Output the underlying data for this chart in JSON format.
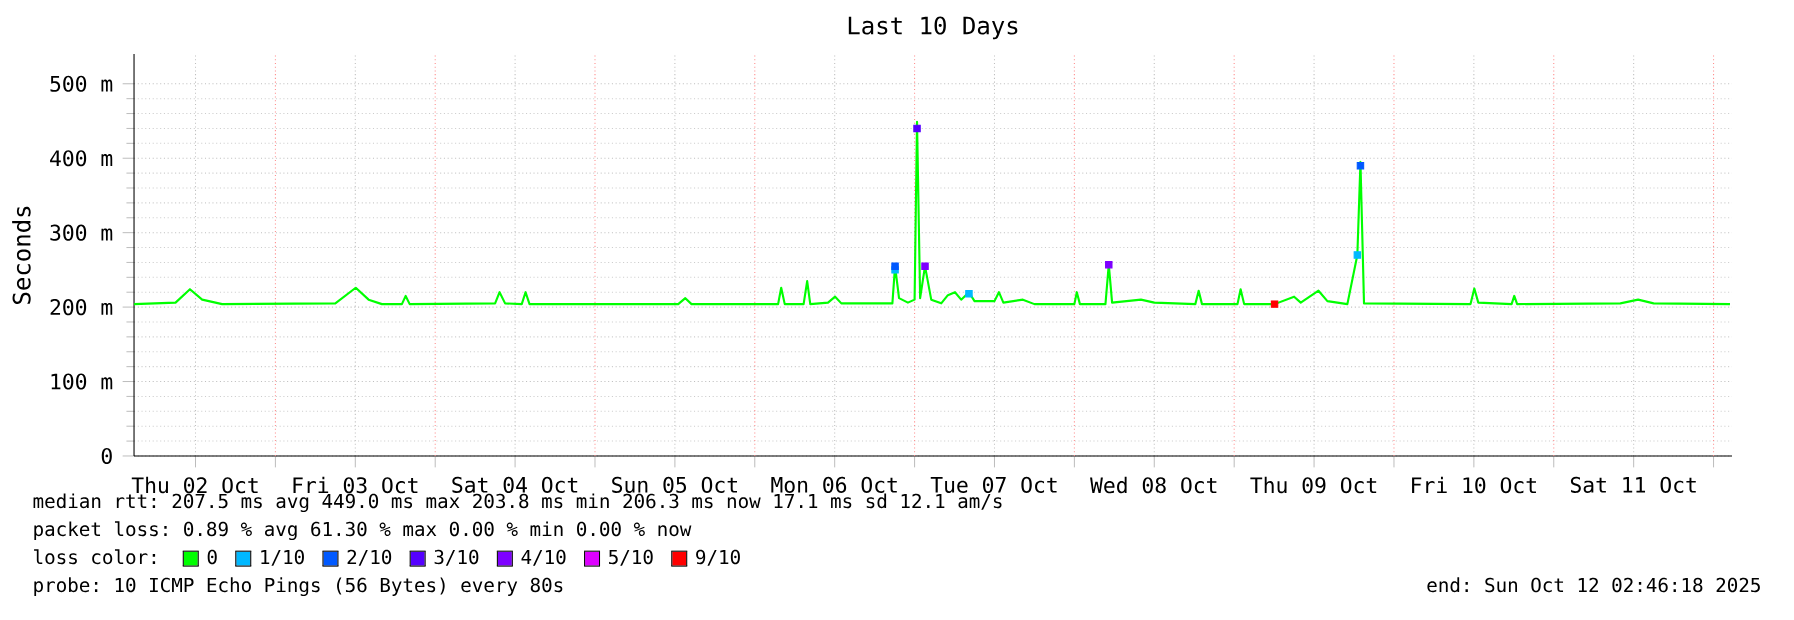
{
  "chart_data": {
    "type": "line",
    "title": "Last 10 Days",
    "ylabel": "Seconds",
    "legend_title": "loss color:",
    "xlim": [
      "2025-10-02T02:46",
      "2025-10-12T02:46"
    ],
    "xticks": [
      {
        "value": "2025-10-02T12:00",
        "label": "Thu 02 Oct"
      },
      {
        "value": "2025-10-03T12:00",
        "label": "Fri 03 Oct"
      },
      {
        "value": "2025-10-04T12:00",
        "label": "Sat 04 Oct"
      },
      {
        "value": "2025-10-05T12:00",
        "label": "Sun 05 Oct"
      },
      {
        "value": "2025-10-06T12:00",
        "label": "Mon 06 Oct"
      },
      {
        "value": "2025-10-07T12:00",
        "label": "Tue 07 Oct"
      },
      {
        "value": "2025-10-08T12:00",
        "label": "Wed 08 Oct"
      },
      {
        "value": "2025-10-09T12:00",
        "label": "Thu 09 Oct"
      },
      {
        "value": "2025-10-10T12:00",
        "label": "Fri 10 Oct"
      },
      {
        "value": "2025-10-11T12:00",
        "label": "Sat 11 Oct"
      },
      {
        "value": "2025-10-03T00:00",
        "label": null
      },
      {
        "value": "2025-10-04T00:00",
        "label": null
      },
      {
        "value": "2025-10-05T00:00",
        "label": null
      },
      {
        "value": "2025-10-06T00:00",
        "label": null
      },
      {
        "value": "2025-10-07T00:00",
        "label": null
      },
      {
        "value": "2025-10-08T00:00",
        "label": null
      },
      {
        "value": "2025-10-09T00:00",
        "label": null
      },
      {
        "value": "2025-10-10T00:00",
        "label": null
      },
      {
        "value": "2025-10-11T00:00",
        "label": null
      },
      {
        "value": "2025-10-12T00:00",
        "label": null
      }
    ],
    "ylim": [
      0,
      540
    ],
    "yticks": [
      0,
      {
        "value": 100,
        "label": "100 m"
      },
      {
        "value": 200,
        "label": "200 m"
      },
      {
        "value": 300,
        "label": "300 m"
      },
      {
        "value": 400,
        "label": "400 m"
      },
      {
        "value": 500,
        "label": "500 m"
      }
    ],
    "grid": true,
    "legend": "bottom",
    "series": [
      {
        "name": "0",
        "color": "#00ff00",
        "x": [
          "2025-10-02T02:46",
          "2025-10-02T09:00",
          "2025-10-02T11:10",
          "2025-10-02T13:00",
          "2025-10-02T16:00",
          "2025-10-03T09:00",
          "2025-10-03T12:04",
          "2025-10-03T14:00",
          "2025-10-03T16:00",
          "2025-10-03T19:00",
          "2025-10-03T19:34",
          "2025-10-03T20:10",
          "2025-10-04T09:00",
          "2025-10-04T09:40",
          "2025-10-04T10:30",
          "2025-10-04T13:00",
          "2025-10-04T13:34",
          "2025-10-04T14:10",
          "2025-10-05T12:30",
          "2025-10-05T13:34",
          "2025-10-05T14:30",
          "2025-10-06T03:30",
          "2025-10-06T03:58",
          "2025-10-06T04:30",
          "2025-10-06T07:20",
          "2025-10-06T07:52",
          "2025-10-06T08:20",
          "2025-10-06T11:00",
          "2025-10-06T12:04",
          "2025-10-06T13:00",
          "2025-10-06T20:40",
          "2025-10-06T21:04",
          "2025-10-06T21:40",
          "2025-10-06T23:00",
          "2025-10-07T00:00",
          "2025-10-07T00:22",
          "2025-10-07T00:50",
          "2025-10-07T01:34",
          "2025-10-07T02:30",
          "2025-10-07T04:00",
          "2025-10-07T05:00",
          "2025-10-07T06:04",
          "2025-10-07T07:00",
          "2025-10-07T08:10",
          "2025-10-07T09:00",
          "2025-10-07T12:00",
          "2025-10-07T12:40",
          "2025-10-07T13:20",
          "2025-10-07T16:16",
          "2025-10-07T18:00",
          "2025-10-08T00:00",
          "2025-10-08T00:22",
          "2025-10-08T00:50",
          "2025-10-08T04:40",
          "2025-10-08T05:10",
          "2025-10-08T05:40",
          "2025-10-08T10:00",
          "2025-10-08T12:00",
          "2025-10-08T18:10",
          "2025-10-08T18:40",
          "2025-10-08T19:10",
          "2025-10-09T00:30",
          "2025-10-09T00:58",
          "2025-10-09T01:30",
          "2025-10-09T06:04",
          "2025-10-09T09:00",
          "2025-10-09T10:00",
          "2025-10-09T12:40",
          "2025-10-09T14:00",
          "2025-10-09T17:00",
          "2025-10-09T18:30",
          "2025-10-09T18:58",
          "2025-10-09T19:30",
          "2025-10-10T11:30",
          "2025-10-10T12:04",
          "2025-10-10T12:40",
          "2025-10-10T17:40",
          "2025-10-10T18:04",
          "2025-10-10T18:30",
          "2025-10-11T10:00",
          "2025-10-11T12:40",
          "2025-10-11T15:00",
          "2025-10-12T02:28"
        ],
        "values": [
          204,
          206,
          224,
          210,
          204,
          205,
          226,
          210,
          204,
          204,
          215,
          204,
          205,
          220,
          205,
          204,
          220,
          204,
          204,
          212,
          204,
          204,
          226,
          204,
          204,
          235,
          204,
          206,
          214,
          205,
          205,
          255,
          212,
          206,
          210,
          449,
          212,
          255,
          210,
          205,
          216,
          220,
          210,
          220,
          208,
          208,
          220,
          206,
          210,
          204,
          204,
          220,
          204,
          204,
          257,
          206,
          210,
          206,
          204,
          222,
          204,
          204,
          224,
          204,
          204,
          214,
          206,
          222,
          208,
          204,
          270,
          395,
          205,
          204,
          225,
          206,
          204,
          215,
          204,
          205,
          210,
          205,
          204
        ]
      },
      {
        "name": "1/10",
        "type": "scatter",
        "marker": "square",
        "color": "#00b8ff",
        "x": [
          "2025-10-06T21:04",
          "2025-10-07T08:10",
          "2025-10-09T18:30"
        ],
        "values": [
          250,
          218,
          270
        ]
      },
      {
        "name": "2/10",
        "type": "scatter",
        "marker": "square",
        "color": "#0059ff",
        "x": [
          "2025-10-06T21:04",
          "2025-10-09T18:58"
        ],
        "values": [
          255,
          390
        ]
      },
      {
        "name": "3/10",
        "type": "scatter",
        "marker": "square",
        "color": "#5500ff",
        "x": [
          "2025-10-07T00:22"
        ],
        "values": [
          440
        ]
      },
      {
        "name": "4/10",
        "type": "scatter",
        "marker": "square",
        "color": "#7e00ff",
        "x": [
          "2025-10-07T01:34",
          "2025-10-08T05:10"
        ],
        "values": [
          255,
          257
        ]
      },
      {
        "name": "5/10",
        "type": "scatter",
        "color": "#dd00ff"
      },
      {
        "name": "9/10",
        "type": "scatter",
        "marker": "square",
        "color": "#ff0000",
        "x": [
          "2025-10-09T06:04"
        ],
        "values": [
          204
        ]
      }
    ],
    "annotations": [
      "median rtt:  207.5 ms avg  449.0 ms max  203.8 ms min  206.3 ms now  17.1 ms sd  12.1   am/s",
      "packet loss: 0.89 % avg  61.30 % max  0.00 % min  0.00 % now",
      "probe:       10 ICMP Echo Pings (56 Bytes) every 80s",
      "end: Sun Oct 12 02:46:18 2025"
    ]
  }
}
